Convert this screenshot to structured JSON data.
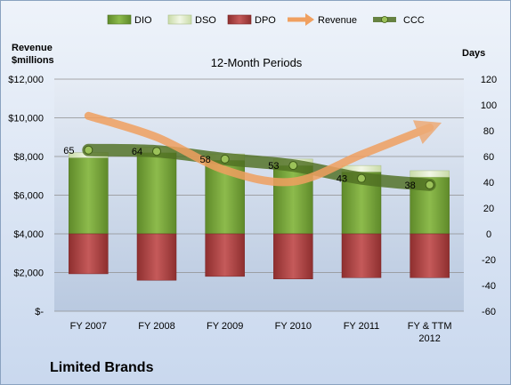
{
  "chart_data": {
    "type": "bar",
    "title": "12-Month Periods",
    "company": "Limited Brands",
    "y_left_label": [
      "Revenue",
      "$millions"
    ],
    "y_right_label": "Days",
    "categories": [
      "FY 2007",
      "FY 2008",
      "FY 2009",
      "FY 2010",
      "FY 2011",
      "FY & TTM 2012"
    ],
    "category_lines": [
      [
        "FY 2007"
      ],
      [
        "FY 2008"
      ],
      [
        "FY 2009"
      ],
      [
        "FY 2010"
      ],
      [
        "FY 2011"
      ],
      [
        "FY & TTM",
        "2012"
      ]
    ],
    "y_left_ticks": [
      "$12,000",
      "$10,000",
      "$8,000",
      "$6,000",
      "$4,000",
      "$2,000",
      "$-"
    ],
    "y_left_ylim": [
      0,
      12000
    ],
    "y_right_ticks": [
      "120",
      "100",
      "80",
      "60",
      "40",
      "20",
      "0",
      "-20",
      "-40",
      "-60"
    ],
    "y_right_ylim": [
      -60,
      120
    ],
    "series": [
      {
        "name": "DIO",
        "axis": "days",
        "values": [
          59,
          63,
          57,
          53,
          48,
          44
        ],
        "color": "#7aa83a"
      },
      {
        "name": "DSO",
        "axis": "days",
        "values": [
          4,
          4,
          5,
          5,
          5,
          5
        ],
        "color": "#e4eecf"
      },
      {
        "name": "DPO",
        "axis": "days",
        "values": [
          -31,
          -36,
          -33,
          -35,
          -34,
          -34
        ],
        "color": "#b84a4a"
      },
      {
        "name": "Revenue",
        "axis": "revenue",
        "values": [
          10100,
          9000,
          7300,
          6700,
          8100,
          9500
        ],
        "color": "#f0a060"
      },
      {
        "name": "CCC",
        "axis": "days",
        "values": [
          65,
          64,
          58,
          53,
          43,
          38
        ],
        "labels": [
          "65",
          "64",
          "58",
          "53",
          "43",
          "38"
        ],
        "color": "#5a7a28"
      }
    ],
    "grid": true
  }
}
